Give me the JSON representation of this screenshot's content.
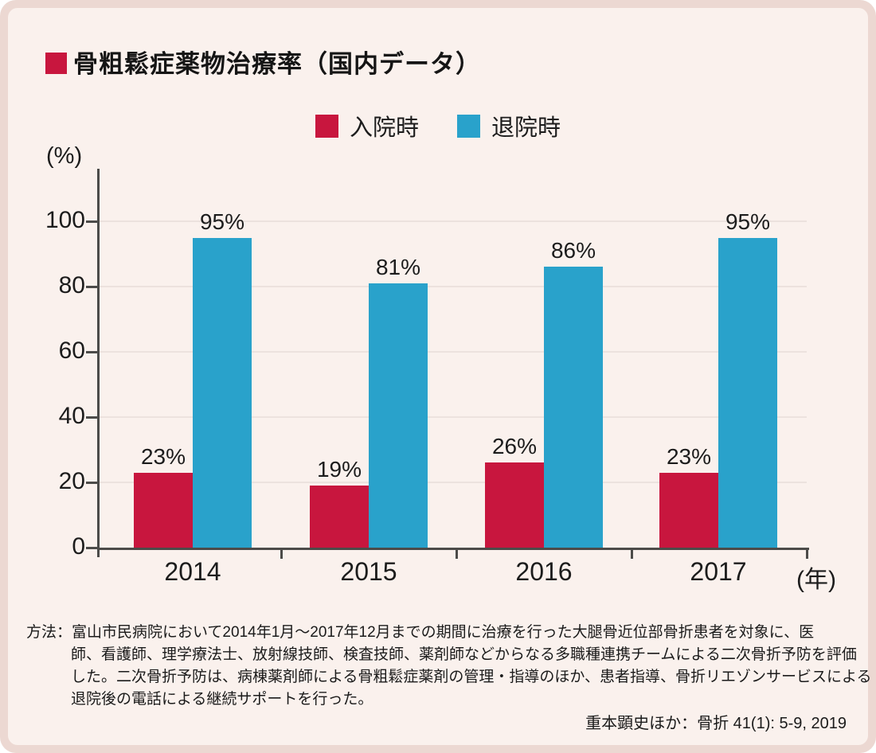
{
  "chart_data": {
    "type": "bar",
    "title": "骨粗鬆症薬物治療率（国内データ）",
    "categories": [
      "2014",
      "2015",
      "2016",
      "2017"
    ],
    "series": [
      {
        "key": "admission",
        "name": "入院時",
        "color": "#c8163e",
        "values": [
          23,
          19,
          26,
          23
        ]
      },
      {
        "key": "discharge",
        "name": "退院時",
        "color": "#29a2cb",
        "values": [
          95,
          81,
          86,
          95
        ]
      }
    ],
    "value_suffix": "%",
    "yticks": [
      0,
      20,
      40,
      60,
      80,
      100
    ],
    "ylim": [
      0,
      116
    ],
    "ylabel": "(%)",
    "xlabel": "(年)",
    "grid": true,
    "legend_position": "top-center"
  },
  "footnote": {
    "lines": [
      "方法：富山市民病院において2014年1月～2017年12月までの期間に治療を行った大腿骨近位部骨折患者を対象に、医",
      "師、看護師、理学療法士、放射線技師、検査技師、薬剤師などからなる多職種連携チームによる二次骨折予防を評価",
      "した。二次骨折予防は、病棟薬剤師による骨粗鬆症薬剤の管理・指導のほか、患者指導、骨折リエゾンサービスによる",
      "退院後の電話による継続サポートを行った。"
    ]
  },
  "citation": "重本顕史ほか：骨折 41(1): 5-9, 2019",
  "colors": {
    "red": "#c8163e",
    "blue": "#29a2cb",
    "background": "#faf1ed",
    "frame_border": "#ecd8d2",
    "axis": "#4c4b49",
    "gridline": "#ece2de",
    "text": "#1c1c1c"
  }
}
